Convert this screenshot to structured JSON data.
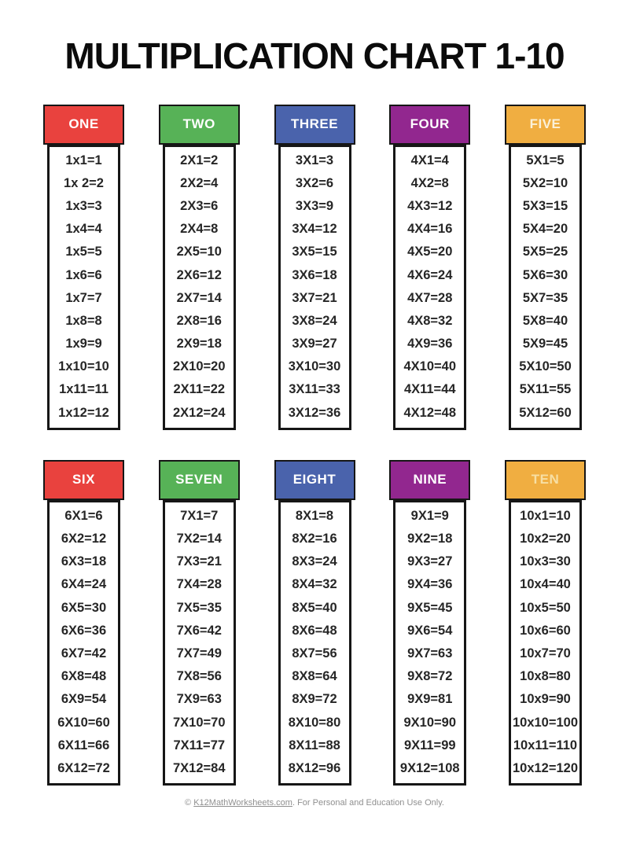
{
  "title": "MULTIPLICATION CHART 1-10",
  "footer": {
    "prefix": "© ",
    "link_text": "K12MathWorksheets.com",
    "suffix": ". For Personal and Education Use Only."
  },
  "colors": {
    "border": "#161616",
    "fact_text": "#262626",
    "footer_text": "#8f8f8f",
    "red": "#E9423E",
    "green": "#57B257",
    "blue": "#4A63AC",
    "purple": "#92278F",
    "yellow": "#F0AE41"
  },
  "rows": [
    {
      "tables": [
        {
          "label": "ONE",
          "header_bg": "#E9423E",
          "header_text_color": "#FFFFFF",
          "facts": [
            "1x1=1",
            "1x 2=2",
            "1x3=3",
            "1x4=4",
            "1x5=5",
            "1x6=6",
            "1x7=7",
            "1x8=8",
            "1x9=9",
            "1x10=10",
            "1x11=11",
            "1x12=12"
          ]
        },
        {
          "label": "TWO",
          "header_bg": "#57B257",
          "header_text_color": "#FFFFFF",
          "facts": [
            "2X1=2",
            "2X2=4",
            "2X3=6",
            "2X4=8",
            "2X5=10",
            "2X6=12",
            "2X7=14",
            "2X8=16",
            "2X9=18",
            "2X10=20",
            "2X11=22",
            "2X12=24"
          ]
        },
        {
          "label": "THREE",
          "header_bg": "#4A63AC",
          "header_text_color": "#FFFFFF",
          "facts": [
            "3X1=3",
            "3X2=6",
            "3X3=9",
            "3X4=12",
            "3X5=15",
            "3X6=18",
            "3X7=21",
            "3X8=24",
            "3X9=27",
            "3X10=30",
            "3X11=33",
            "3X12=36"
          ]
        },
        {
          "label": "FOUR",
          "header_bg": "#92278F",
          "header_text_color": "#FFFFFF",
          "facts": [
            "4X1=4",
            "4X2=8",
            "4X3=12",
            "4X4=16",
            "4X5=20",
            "4X6=24",
            "4X7=28",
            "4X8=32",
            "4X9=36",
            "4X10=40",
            "4X11=44",
            "4X12=48"
          ]
        },
        {
          "label": "FIVE",
          "header_bg": "#F0AE41",
          "header_text_color": "#FBF1D8",
          "facts": [
            "5X1=5",
            "5X2=10",
            "5X3=15",
            "5X4=20",
            "5X5=25",
            "5X6=30",
            "5X7=35",
            "5X8=40",
            "5X9=45",
            "5X10=50",
            "5X11=55",
            "5X12=60"
          ]
        }
      ]
    },
    {
      "tables": [
        {
          "label": "SIX",
          "header_bg": "#E9423E",
          "header_text_color": "#FFFFFF",
          "facts": [
            "6X1=6",
            "6X2=12",
            "6X3=18",
            "6X4=24",
            "6X5=30",
            "6X6=36",
            "6X7=42",
            "6X8=48",
            "6X9=54",
            "6X10=60",
            "6X11=66",
            "6X12=72"
          ]
        },
        {
          "label": "SEVEN",
          "header_bg": "#57B257",
          "header_text_color": "#FFFFFF",
          "facts": [
            "7X1=7",
            "7X2=14",
            "7X3=21",
            "7X4=28",
            "7X5=35",
            "7X6=42",
            "7X7=49",
            "7X8=56",
            "7X9=63",
            "7X10=70",
            "7X11=77",
            "7X12=84"
          ]
        },
        {
          "label": "EIGHT",
          "header_bg": "#4A63AC",
          "header_text_color": "#FFFFFF",
          "facts": [
            "8X1=8",
            "8X2=16",
            "8X3=24",
            "8X4=32",
            "8X5=40",
            "8X6=48",
            "8X7=56",
            "8X8=64",
            "8X9=72",
            "8X10=80",
            "8X11=88",
            "8X12=96"
          ]
        },
        {
          "label": "NINE",
          "header_bg": "#92278F",
          "header_text_color": "#FFFFFF",
          "facts": [
            "9X1=9",
            "9X2=18",
            "9X3=27",
            "9X4=36",
            "9X5=45",
            "9X6=54",
            "9X7=63",
            "9X8=72",
            "9X9=81",
            "9X10=90",
            "9X11=99",
            "9X12=108"
          ]
        },
        {
          "label": "TEN",
          "header_bg": "#F0AE41",
          "header_text_color": "#F7DFA4",
          "facts": [
            "10x1=10",
            "10x2=20",
            "10x3=30",
            "10x4=40",
            "10x5=50",
            "10x6=60",
            "10x7=70",
            "10x8=80",
            "10x9=90",
            "10x10=100",
            "10x11=110",
            "10x12=120"
          ]
        }
      ]
    }
  ]
}
